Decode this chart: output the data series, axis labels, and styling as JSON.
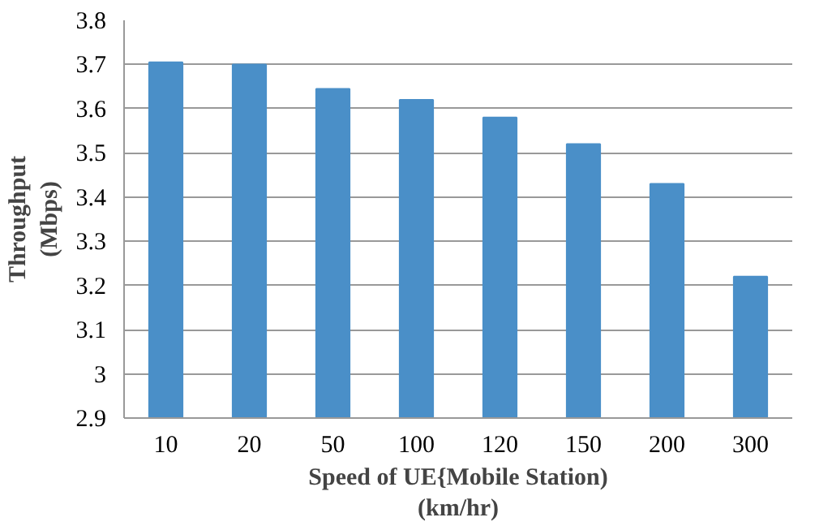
{
  "chart_data": {
    "type": "bar",
    "xlabel": "Speed of UE{Mobile Station)\n(km/hr)",
    "ylabel": "Throughput\n(Mbps)",
    "categories": [
      "10",
      "20",
      "50",
      "100",
      "120",
      "150",
      "200",
      "300"
    ],
    "values": [
      3.705,
      3.7,
      3.645,
      3.62,
      3.58,
      3.52,
      3.43,
      3.22
    ],
    "color": "#4a8fc8",
    "ylim": [
      2.9,
      3.8
    ],
    "yticks": [
      {
        "value": 2.9,
        "label": "2.9"
      },
      {
        "value": 3.0,
        "label": "3"
      },
      {
        "value": 3.1,
        "label": "3.1"
      },
      {
        "value": 3.2,
        "label": "3.2"
      },
      {
        "value": 3.3,
        "label": "3.3"
      },
      {
        "value": 3.4,
        "label": "3.4"
      },
      {
        "value": 3.5,
        "label": "3.5"
      },
      {
        "value": 3.6,
        "label": "3.6"
      },
      {
        "value": 3.7,
        "label": "3.7"
      },
      {
        "value": 3.8,
        "label": "3.8"
      }
    ],
    "grid": "y"
  }
}
